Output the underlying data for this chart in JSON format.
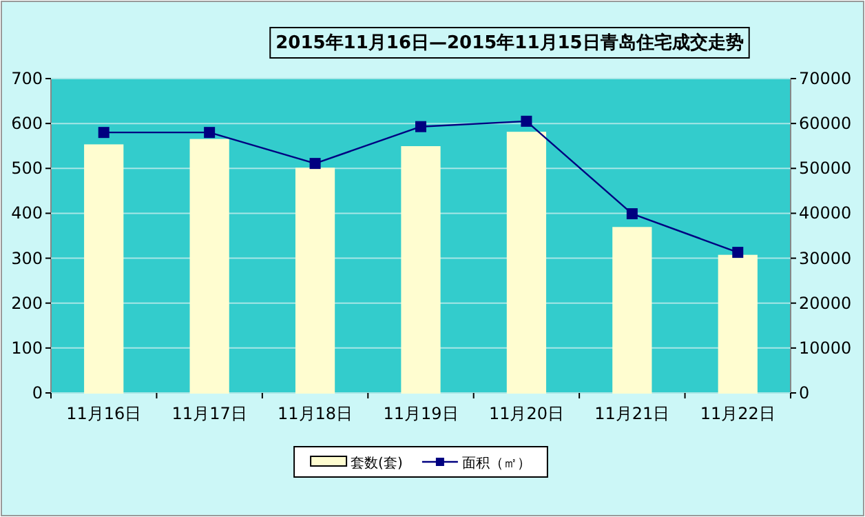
{
  "chart_data": {
    "type": "bar",
    "title": "2015年11月16日—2015年11月15日青岛住宅成交走势",
    "categories": [
      "11月16日",
      "11月17日",
      "11月18日",
      "11月19日",
      "11月20日",
      "11月21日",
      "11月22日"
    ],
    "series": [
      {
        "name": "套数(套)",
        "color": "#fffdd0",
        "values": [
          552,
          564,
          500,
          548,
          580,
          368,
          306
        ]
      },
      {
        "name": "面积（㎡）",
        "type": "line",
        "axis": "y2",
        "color": "#000080",
        "marker": "square",
        "values": [
          58000,
          58000,
          51100,
          59300,
          60500,
          39900,
          31300
        ]
      }
    ],
    "ylim": [
      0,
      700
    ],
    "yticks": [
      0,
      100,
      200,
      300,
      400,
      500,
      600,
      700
    ],
    "y2lim": [
      0,
      70000
    ],
    "y2ticks": [
      0,
      10000,
      20000,
      30000,
      40000,
      50000,
      60000,
      70000
    ],
    "grid": "y",
    "legend": "bottom"
  }
}
